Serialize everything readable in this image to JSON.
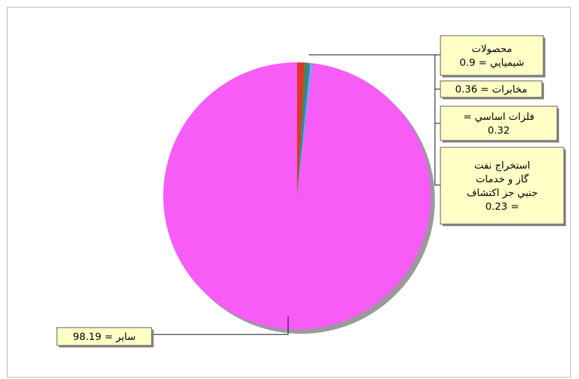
{
  "chart_data": {
    "type": "pie",
    "slices": [
      {
        "label": "محصولات شيميايي",
        "value": 0.9,
        "color": "#e0352a",
        "text": [
          "محصولات",
          "شيميايي = 0.9"
        ]
      },
      {
        "label": "مخابرات",
        "value": 0.36,
        "color": "#3f8f3a",
        "text": [
          "مخابرات = 0.36"
        ]
      },
      {
        "label": "فلزات اساسي",
        "value": 0.32,
        "color": "#4a6fd6",
        "text": [
          "فلزات اساسي =",
          "0.32"
        ]
      },
      {
        "label": "استخراج نفت گاز و خدمات جنبي جز اكتشاف",
        "value": 0.23,
        "color": "#3ec9c9",
        "text": [
          "استخراج نفت",
          "گاز و خدمات",
          "جنبي جز اكتشاف",
          "= 0.23"
        ]
      },
      {
        "label": "ساير",
        "value": 98.19,
        "color": "#f75cf7",
        "text": [
          "ساير = 98.19"
        ]
      }
    ]
  }
}
